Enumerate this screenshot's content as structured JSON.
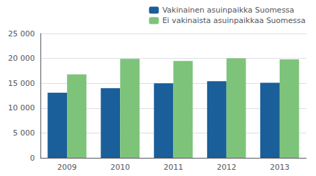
{
  "chart_data": {
    "type": "bar",
    "categories": [
      "2009",
      "2010",
      "2011",
      "2012",
      "2013"
    ],
    "series": [
      {
        "name": "Vakinainen asuinpaikka Suomessa",
        "color": "#1A5E9A",
        "values": [
          13100,
          14000,
          15000,
          15400,
          15100
        ]
      },
      {
        "name": "Ei vakinaista asuinpaikkaa Suomessa",
        "color": "#7DC47A",
        "values": [
          16800,
          19900,
          19500,
          20000,
          19800
        ]
      }
    ],
    "ylim": [
      0,
      25000
    ],
    "yticks": [
      0,
      {
        "value": 5000,
        "label": "5 000"
      },
      {
        "value": 10000,
        "label": "10 000"
      },
      {
        "value": 15000,
        "label": "15 000"
      },
      {
        "value": 20000,
        "label": "20 000"
      },
      {
        "value": 25000,
        "label": "25 000"
      }
    ],
    "grid": true,
    "legend": "upper right"
  }
}
